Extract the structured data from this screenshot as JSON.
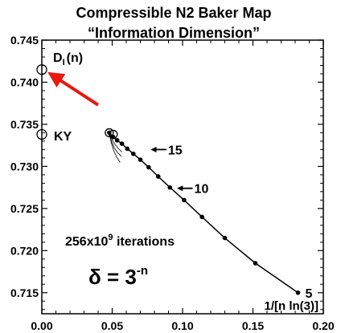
{
  "chart_data": {
    "type": "line",
    "title": "Compressible N2 Baker Map",
    "subtitle": "“Information Dimension”",
    "xlabel": "1/[n ln(3)]",
    "ylabel": "",
    "xlim": [
      0.0,
      0.2
    ],
    "ylim": [
      0.7125,
      0.745
    ],
    "x_ticks": [
      0.0,
      0.05,
      0.1,
      0.15,
      0.2
    ],
    "x_tick_labels": [
      "0.00",
      "0.05",
      "0.10",
      "0.15",
      "0.20"
    ],
    "y_ticks": [
      0.715,
      0.72,
      0.725,
      0.73,
      0.735,
      0.74,
      0.745
    ],
    "y_tick_labels": [
      "0.715",
      "0.720",
      "0.725",
      "0.730",
      "0.735",
      "0.740",
      "0.745"
    ],
    "grid": false,
    "series": [
      {
        "x": [
          0.182,
          0.1517,
          0.13,
          0.1138,
          0.1011,
          0.091,
          0.0827,
          0.0759,
          0.07,
          0.065,
          0.0607,
          0.0569,
          0.0535,
          0.0506,
          0.0479
        ],
        "y": [
          0.715,
          0.7185,
          0.7215,
          0.724,
          0.726,
          0.7275,
          0.7288,
          0.7299,
          0.7308,
          0.7315,
          0.7321,
          0.7327,
          0.7331,
          0.7335,
          0.734
        ]
      }
    ],
    "dense_curves": [
      {
        "x": [
          0.0479,
          0.05,
          0.052,
          0.0545,
          0.057
        ],
        "y": [
          0.734,
          0.7332,
          0.7326,
          0.7321,
          0.7317
        ]
      },
      {
        "x": [
          0.0479,
          0.0495,
          0.0515,
          0.054,
          0.0565
        ],
        "y": [
          0.734,
          0.733,
          0.7322,
          0.7316,
          0.7312
        ]
      },
      {
        "x": [
          0.0479,
          0.0492,
          0.051,
          0.0532,
          0.0556
        ],
        "y": [
          0.734,
          0.7329,
          0.7319,
          0.7311,
          0.7305
        ]
      }
    ],
    "extrapolation_markers": [
      {
        "label": "D_I(n)",
        "x": 0.0,
        "y": 0.7415
      },
      {
        "label": "KY",
        "x": 0.0,
        "y": 0.7338
      }
    ],
    "arrows": [
      {
        "x_from": 0.04,
        "y_from": 0.7373,
        "x_to": 0.006,
        "y_to": 0.741,
        "color": "#e8190e"
      }
    ],
    "n_annotations": [
      {
        "label": "15",
        "x": 0.0759,
        "y": 0.732
      },
      {
        "label": "10",
        "x": 0.0946,
        "y": 0.7274
      },
      {
        "label": "5",
        "x": 0.182,
        "y": 0.715
      }
    ],
    "texts": {
      "d_label_main": "D",
      "d_label_sub": "I",
      "d_label_rest": "(n)",
      "ky_label": "KY",
      "iterations_base": "256x10",
      "iterations_exp": "9",
      "iterations_rest": " iterations",
      "delta_base": "δ = 3",
      "delta_exp": "-n"
    }
  }
}
